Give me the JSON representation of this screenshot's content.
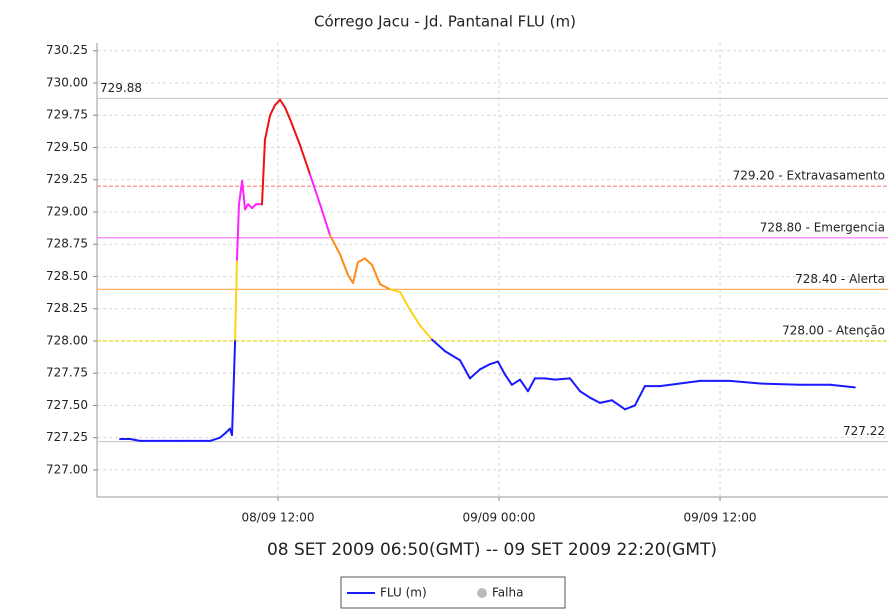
{
  "chart_data": {
    "type": "line",
    "title": "Córrego Jacu - Jd. Pantanal FLU (m)",
    "subtitle": "08 SET 2009 06:50(GMT) -- 09 SET 2009 22:20(GMT)",
    "xlim": [
      2.17,
      45.12
    ],
    "xticks": [
      {
        "value": 12,
        "label": "08/09 12:00"
      },
      {
        "value": 24,
        "label": "09/09 00:00"
      },
      {
        "value": 36,
        "label": "09/09 12:00"
      }
    ],
    "ylim": [
      726.79,
      730.31
    ],
    "yticks": [
      {
        "value": 727,
        "label": "727.00"
      },
      727.25,
      {
        "value": 727.5,
        "label": "727.50"
      },
      727.75,
      {
        "value": 728,
        "label": "728.00"
      },
      728.25,
      {
        "value": 728.5,
        "label": "728.50"
      },
      728.75,
      {
        "value": 729,
        "label": "729.00"
      },
      729.25,
      {
        "value": 729.5,
        "label": "729.50"
      },
      729.75,
      {
        "value": 730,
        "label": "730.00"
      },
      730.25
    ],
    "grid": true,
    "series": [
      {
        "name": "FLU (m)",
        "color": "#1a1aff",
        "x": [
          3.42,
          3.97,
          4.51,
          5.59,
          6.68,
          8.31,
          8.85,
          9.18,
          9.39,
          9.5,
          9.56,
          9.67,
          9.77,
          9.88,
          10.05,
          10.21,
          10.37,
          10.59,
          10.81,
          11.13,
          11.29,
          11.57,
          11.84,
          12.11,
          12.38,
          12.65,
          13.19,
          13.74,
          14.28,
          14.82,
          15.37,
          15.8,
          16.07,
          16.34,
          16.72,
          17.1,
          17.54,
          18.08,
          18.62,
          19.17,
          19.71,
          20.36,
          21.07,
          21.88,
          22.42,
          22.97,
          23.51,
          23.94,
          24.32,
          24.7,
          25.14,
          25.57,
          25.95,
          26.5,
          27.04,
          27.85,
          28.4,
          28.94,
          29.48,
          30.13,
          30.84,
          31.38,
          31.92,
          32.74,
          33.82,
          34.91,
          36.54,
          38.17,
          40.34,
          41.97,
          43.32
        ],
        "values": [
          727.24,
          727.24,
          727.225,
          727.225,
          727.225,
          727.225,
          727.25,
          727.29,
          727.32,
          727.27,
          727.52,
          728.01,
          728.63,
          729.06,
          729.24,
          729.02,
          729.06,
          729.03,
          729.06,
          729.06,
          729.56,
          729.75,
          729.83,
          729.87,
          729.81,
          729.72,
          729.52,
          729.29,
          729.06,
          728.82,
          728.67,
          728.51,
          728.45,
          728.61,
          728.64,
          728.59,
          728.44,
          728.4,
          728.38,
          728.24,
          728.12,
          728.01,
          727.92,
          727.85,
          727.71,
          727.78,
          727.82,
          727.84,
          727.74,
          727.66,
          727.7,
          727.61,
          727.71,
          727.71,
          727.7,
          727.71,
          727.61,
          727.56,
          727.52,
          727.54,
          727.47,
          727.5,
          727.65,
          727.65,
          727.67,
          727.69,
          727.69,
          727.67,
          727.66,
          727.66,
          727.64
        ]
      }
    ],
    "thresholds": [
      {
        "value": 729.88,
        "label": "729.88",
        "line_color": "#c8c8c8",
        "side": "left"
      },
      {
        "value": 729.2,
        "label": "729.20 - Extravasamento",
        "line_color": "#ff8080",
        "trace_color": "#ee1111",
        "dashed": true,
        "side": "right"
      },
      {
        "value": 728.8,
        "label": "728.80 - Emergencia",
        "line_color": "#ff80ff",
        "trace_color": "#ff22ff",
        "side": "right"
      },
      {
        "value": 728.4,
        "label": "728.40 - Alerta",
        "line_color": "#ffb060",
        "trace_color": "#ff8c1a",
        "side": "right"
      },
      {
        "value": 728.0,
        "label": "728.00 - Atenção",
        "line_color": "#e6d800",
        "trace_color": "#ffd21a",
        "dashed": true,
        "side": "right"
      },
      {
        "value": 727.22,
        "label": "727.22",
        "line_color": "#c8c8c8",
        "side": "right"
      }
    ],
    "legend_extra": {
      "name": "Falha",
      "color": "#bbbbbb"
    }
  }
}
